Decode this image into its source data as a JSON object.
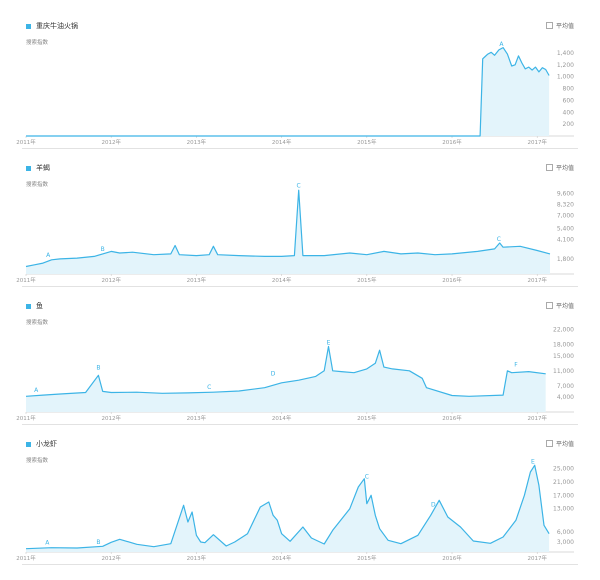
{
  "avg_label": "平均值",
  "icons": {
    "legend": "square-swatch-icon",
    "checkbox": "checkbox-icon"
  },
  "colors": {
    "line": "#3cb4e6",
    "fill": "#e3f4fb",
    "axis": "#cccccc",
    "text": "#999999"
  },
  "chart_data": [
    {
      "type": "area",
      "series": [
        {
          "name": "重庆牛油火锅"
        }
      ],
      "ylabel": "搜索指数",
      "x_ticks": [
        "2011年",
        "2012年",
        "2013年",
        "2014年",
        "2015年",
        "2016年",
        "2017年"
      ],
      "y_ticks": [
        200,
        400,
        600,
        800,
        "1,000",
        "1,200",
        "1,400"
      ],
      "ylim": [
        0,
        1550
      ],
      "annotations": [
        {
          "label": "A",
          "x": 2016.58,
          "y": 1480
        }
      ],
      "x": [
        2011.0,
        2016.33,
        2016.36,
        2016.39,
        2016.42,
        2016.46,
        2016.5,
        2016.55,
        2016.6,
        2016.65,
        2016.7,
        2016.74,
        2016.78,
        2016.82,
        2016.86,
        2016.9,
        2016.94,
        2016.98,
        2017.02,
        2017.06,
        2017.1,
        2017.14
      ],
      "values": [
        0,
        0,
        1300,
        1340,
        1380,
        1410,
        1360,
        1450,
        1490,
        1380,
        1180,
        1200,
        1350,
        1230,
        1130,
        1160,
        1110,
        1160,
        1080,
        1150,
        1120,
        1020
      ]
    },
    {
      "type": "area",
      "series": [
        {
          "name": "羊蝎"
        }
      ],
      "ylabel": "搜索指数",
      "x_ticks": [
        "2011年",
        "2012年",
        "2013年",
        "2014年",
        "2015年",
        "2016年",
        "2017年"
      ],
      "y_ticks": [
        "1,800",
        "4,100",
        "5,400",
        "7,000",
        "8,320",
        "9,600"
      ],
      "ylim": [
        0,
        10500
      ],
      "annotations": [
        {
          "label": "A",
          "x": 2011.26,
          "y": 1800
        },
        {
          "label": "B",
          "x": 2011.9,
          "y": 2500
        },
        {
          "label": "C",
          "x": 2014.2,
          "y": 10100
        },
        {
          "label": "C",
          "x": 2016.55,
          "y": 3700
        }
      ],
      "x": [
        2011.0,
        2011.1,
        2011.2,
        2011.3,
        2011.4,
        2011.6,
        2011.8,
        2011.9,
        2012.0,
        2012.1,
        2012.25,
        2012.5,
        2012.7,
        2012.75,
        2012.8,
        2013.0,
        2013.15,
        2013.2,
        2013.25,
        2013.5,
        2013.8,
        2014.0,
        2014.15,
        2014.2,
        2014.25,
        2014.5,
        2014.8,
        2015.0,
        2015.2,
        2015.4,
        2015.6,
        2015.8,
        2016.0,
        2016.3,
        2016.5,
        2016.56,
        2016.6,
        2016.8,
        2017.0,
        2017.15
      ],
      "values": [
        900,
        1100,
        1300,
        1700,
        1800,
        1900,
        2100,
        2400,
        2700,
        2500,
        2600,
        2300,
        2400,
        3400,
        2300,
        2200,
        2300,
        3300,
        2300,
        2200,
        2100,
        2100,
        2200,
        10000,
        2200,
        2200,
        2500,
        2300,
        2700,
        2400,
        2500,
        2300,
        2400,
        2700,
        3000,
        3700,
        3200,
        3300,
        2800,
        2400
      ]
    },
    {
      "type": "area",
      "series": [
        {
          "name": "鱼"
        }
      ],
      "ylabel": "搜索指数",
      "x_ticks": [
        "2011年",
        "2012年",
        "2013年",
        "2014年",
        "2015年",
        "2016年",
        "2017年"
      ],
      "y_ticks": [
        "4,000",
        "7,000",
        "11,000",
        "15,000",
        "18,000",
        "22,000"
      ],
      "ylim": [
        0,
        23500
      ],
      "annotations": [
        {
          "label": "A",
          "x": 2011.12,
          "y": 4800
        },
        {
          "label": "B",
          "x": 2011.85,
          "y": 10800
        },
        {
          "label": "C",
          "x": 2013.15,
          "y": 5600
        },
        {
          "label": "D",
          "x": 2013.9,
          "y": 9200
        },
        {
          "label": "E",
          "x": 2014.55,
          "y": 17500
        },
        {
          "label": "F",
          "x": 2016.75,
          "y": 11600
        }
      ],
      "x": [
        2011.0,
        2011.2,
        2011.4,
        2011.7,
        2011.85,
        2011.9,
        2012.0,
        2012.3,
        2012.6,
        2012.9,
        2013.2,
        2013.5,
        2013.8,
        2014.0,
        2014.2,
        2014.4,
        2014.5,
        2014.55,
        2014.6,
        2014.7,
        2014.85,
        2015.0,
        2015.1,
        2015.15,
        2015.2,
        2015.3,
        2015.5,
        2015.65,
        2015.7,
        2016.0,
        2016.2,
        2016.6,
        2016.65,
        2016.7,
        2016.9,
        2017.1
      ],
      "values": [
        4200,
        4500,
        4800,
        5200,
        9800,
        5500,
        5200,
        5300,
        5000,
        5100,
        5300,
        5600,
        6500,
        7800,
        8500,
        9500,
        11000,
        17500,
        11000,
        10800,
        10500,
        11500,
        13000,
        16500,
        12000,
        11500,
        11000,
        9000,
        6500,
        4400,
        4200,
        4500,
        11000,
        10500,
        10800,
        10200
      ]
    },
    {
      "type": "area",
      "series": [
        {
          "name": "小龙虾"
        }
      ],
      "ylabel": "搜索指数",
      "x_ticks": [
        "2011年",
        "2012年",
        "2013年",
        "2014年",
        "2015年",
        "2016年",
        "2017年"
      ],
      "y_ticks": [
        "3,000",
        "6,000",
        "13,000",
        "17,000",
        "21,000",
        "25,000"
      ],
      "ylim": [
        0,
        27000
      ],
      "annotations": [
        {
          "label": "A",
          "x": 2011.25,
          "y": 1600
        },
        {
          "label": "B",
          "x": 2011.85,
          "y": 1800
        },
        {
          "label": "C",
          "x": 2015.0,
          "y": 21500
        },
        {
          "label": "D",
          "x": 2015.78,
          "y": 13000
        },
        {
          "label": "E",
          "x": 2016.95,
          "y": 26000
        }
      ],
      "x": [
        2011.0,
        2011.3,
        2011.6,
        2011.9,
        2012.0,
        2012.1,
        2012.3,
        2012.5,
        2012.7,
        2012.85,
        2012.9,
        2012.95,
        2013.0,
        2013.05,
        2013.1,
        2013.2,
        2013.35,
        2013.45,
        2013.6,
        2013.75,
        2013.85,
        2013.9,
        2013.95,
        2014.0,
        2014.1,
        2014.25,
        2014.35,
        2014.5,
        2014.6,
        2014.8,
        2014.9,
        2014.97,
        2015.0,
        2015.05,
        2015.1,
        2015.15,
        2015.25,
        2015.4,
        2015.6,
        2015.75,
        2015.85,
        2015.95,
        2016.1,
        2016.25,
        2016.45,
        2016.6,
        2016.75,
        2016.85,
        2016.92,
        2016.97,
        2017.02,
        2017.08,
        2017.14
      ],
      "values": [
        1000,
        1300,
        1200,
        1700,
        2900,
        3800,
        2300,
        1600,
        2500,
        14000,
        9000,
        12000,
        5000,
        3000,
        2800,
        5200,
        1800,
        3000,
        5500,
        13500,
        15000,
        11000,
        9500,
        5500,
        3200,
        7500,
        4200,
        2400,
        6500,
        13000,
        19500,
        22000,
        14500,
        17000,
        11000,
        7000,
        3500,
        2500,
        5000,
        11000,
        15500,
        10500,
        7500,
        3300,
        2600,
        4500,
        9500,
        17000,
        24000,
        26000,
        20000,
        8000,
        5500
      ]
    }
  ]
}
